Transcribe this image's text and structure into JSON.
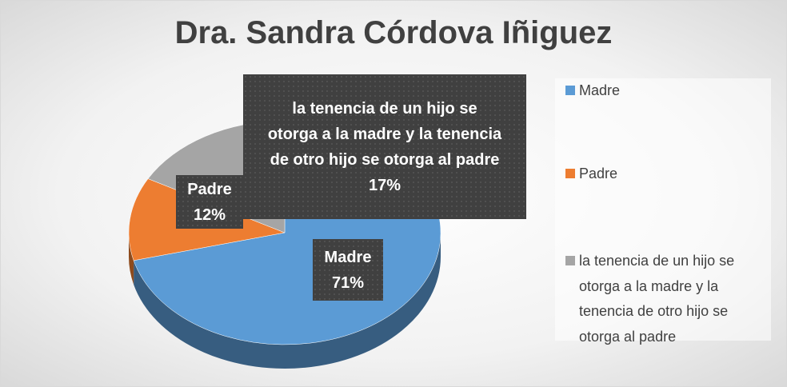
{
  "chart_data": {
    "type": "pie",
    "title": "Dra. Sandra Córdova Iñiguez",
    "categories": [
      "Madre",
      "Padre",
      "la tenencia de un hijo se otorga a la madre y la tenencia de otro hijo se otorga al padre"
    ],
    "values": [
      71,
      12,
      17
    ],
    "value_labels": [
      "71%",
      "12%",
      "17%"
    ],
    "colors": [
      "#5b9bd5",
      "#ed7d31",
      "#a5a5a5"
    ],
    "legend": "right"
  }
}
